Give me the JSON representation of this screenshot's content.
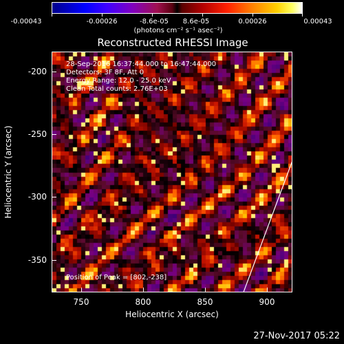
{
  "chart_data": {
    "type": "heatmap",
    "title": "Reconstructed RHESSI Image",
    "xlabel": "Heliocentric X (arcsec)",
    "ylabel": "Heliocentric Y (arcsec)",
    "xlim": [
      727,
      920
    ],
    "ylim": [
      -375,
      -183
    ],
    "xticks": [
      "750",
      "800",
      "850",
      "900"
    ],
    "yticks": [
      "-200",
      "-250",
      "-300",
      "-350"
    ],
    "colorbar": {
      "ticks": [
        "-0.00043",
        "-0.00026",
        "-8.6e-05",
        "8.6e-05",
        "0.00026",
        "0.00043"
      ],
      "units": "(photons cm⁻² s⁻¹ asec⁻²)"
    },
    "annotations": [
      "28-Sep-2016 16:37:44.000 to 16:47:44.000",
      "Detectors: 3F 8F, Att 0",
      "Energy Range: 12.0 - 25.0 keV",
      "Clean     Total counts: 2.76E+03"
    ],
    "peak_label": "Position of Peak = [802,-238]",
    "limb_points": [
      [
        880,
        -375
      ],
      [
        920,
        -268
      ]
    ]
  },
  "timestamp": "27-Nov-2017 05:22"
}
